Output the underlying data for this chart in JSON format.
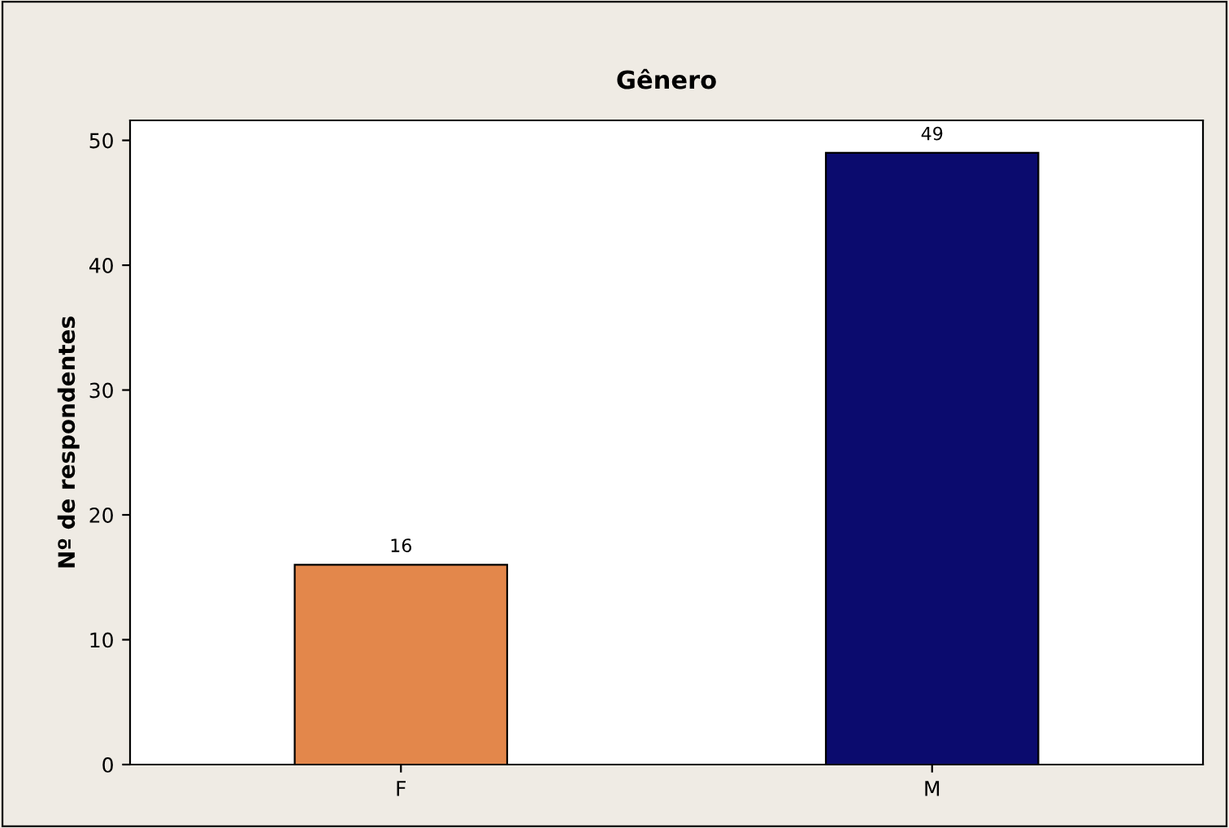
{
  "chart_data": {
    "type": "bar",
    "title": "Gênero",
    "ylabel": "Nº de respondentes",
    "categories": [
      "F",
      "M"
    ],
    "values": [
      16,
      49
    ],
    "colors": [
      "#e3874b",
      "#0b0b6e"
    ],
    "ylim": [
      0,
      51.6
    ],
    "yticks": [
      0,
      10,
      20,
      30,
      40,
      50
    ],
    "data_labels": true,
    "grid": false,
    "legend": false
  }
}
